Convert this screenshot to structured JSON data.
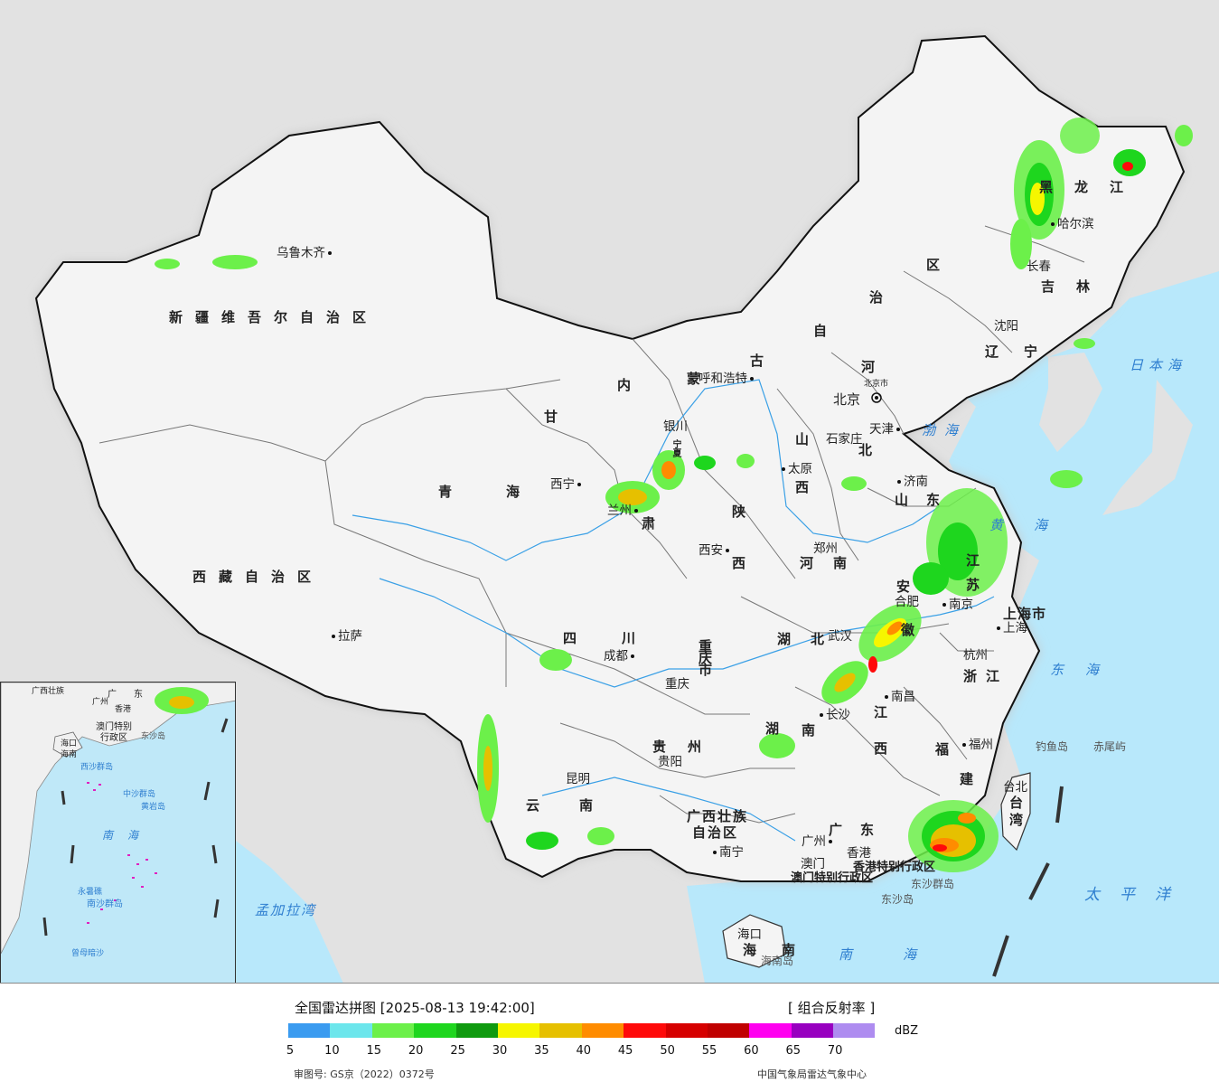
{
  "header": {
    "title": "全国雷达拼图 [2025-08-13 19:42:00]",
    "product": "[ 组合反射率 ]"
  },
  "legend": {
    "unit": "dBZ",
    "colors": [
      "#3a9bf0",
      "#6ce6ec",
      "#6cf04a",
      "#1ed61e",
      "#0f9a0f",
      "#f6f600",
      "#e6c000",
      "#ff8c00",
      "#ff0a0a",
      "#d60000",
      "#c00000",
      "#ff00f0",
      "#9800c0",
      "#ae8cf0"
    ],
    "ticks": [
      "5",
      "10",
      "15",
      "20",
      "25",
      "30",
      "35",
      "40",
      "45",
      "50",
      "55",
      "60",
      "65",
      "70"
    ]
  },
  "footer": {
    "approval": "审图号: GS京（2022）0372号",
    "agency": "中国气象局雷达气象中心"
  },
  "map": {
    "provinces": {
      "xinjiang": "新疆维吾尔自治区",
      "xizang": "西藏自治区",
      "qinghai": "青海",
      "gansu_gan": "甘",
      "gansu_su": "肃",
      "neimenggu": [
        "内",
        "蒙",
        "古",
        "自",
        "治",
        "区"
      ],
      "heilongjiang": "黑龙江",
      "jilin": "吉林",
      "liaoning": "辽宁",
      "hebei_he": "河",
      "hebei_bei": "北",
      "shanxi": "山西",
      "shaanxi_shan": "陕",
      "shaanxi_xi": "西",
      "henan": "河南",
      "shandong": "山东",
      "jiangsu": "江苏",
      "anhui_an": "安",
      "anhui_hui": "徽",
      "hubei": "湖北",
      "hunan_hu": "湖",
      "hunan_nan": "南",
      "jiangxi_jiang": "江",
      "jiangxi_xi": "西",
      "zhejiang": "浙江",
      "fujian_fu": "福",
      "fujian_jian": "建",
      "sichuan": "四川",
      "chongqing": "重庆市",
      "guizhou": "贵州",
      "yunnan": "云南",
      "guangxi_1": "广西壮族",
      "guangxi_2": "自治区",
      "guangdong": "广东",
      "hainan": "海南",
      "taiwan": "台湾",
      "shanghai": "上海市",
      "ningxia": "宁夏",
      "hk": "香港特别行政区",
      "macao": "澳门特别行政区"
    },
    "cities": {
      "urumqi": "乌鲁木齐",
      "lhasa": "拉萨",
      "xining": "西宁",
      "lanzhou": "兰州",
      "yinchuan": "银川",
      "huhehaote": "呼和浩特",
      "beijing": "北京",
      "tianjin": "天津",
      "shijiazhuang": "石家庄",
      "taiyuan": "太原",
      "xian": "西安",
      "zhengzhou": "郑州",
      "jinan": "济南",
      "nanjing": "南京",
      "hefei": "合肥",
      "shanghai": "上海",
      "hangzhou": "杭州",
      "wuhan": "武汉",
      "nanchang": "南昌",
      "changsha": "长沙",
      "fuzhou": "福州",
      "taibei": "台北",
      "chengdu": "成都",
      "chongqing": "重庆",
      "guiyang": "贵阳",
      "kunming": "昆明",
      "nanning": "南宁",
      "guangzhou": "广州",
      "hongkong": "香港",
      "macao": "澳门",
      "haikou": "海口",
      "harbin": "哈尔滨",
      "changchun": "长春",
      "shenyang": "沈阳"
    },
    "seas": {
      "bohai": "渤海",
      "huanghai": "黄海",
      "donghai": "东海",
      "nanhai": "南海",
      "riben": "日本海",
      "taiping": "太平洋",
      "mengjiala": "孟加拉湾"
    },
    "islands": {
      "diaoyu": "钓鱼岛",
      "chiwei": "赤尾屿",
      "dongsha_qundao": "东沙群岛",
      "dongsha_dao": "东沙岛",
      "hainan_dao": "海南岛",
      "beijing_shi": "北京市"
    },
    "inset": {
      "guangxi": "广西壮族",
      "guangdong_1": "广",
      "guangdong_2": "东",
      "guangzhou": "广州",
      "hk": "香港",
      "macao_1": "澳门特别",
      "macao_2": "行政区",
      "dongsha": "东沙岛",
      "haikou": "海口",
      "hainan": "海南",
      "xisha": "西沙群岛",
      "zhongsha": "中沙群岛",
      "huangyan": "黄岩岛",
      "nanhai": "南海",
      "nansha": "南沙群岛",
      "zengmu": "曾母暗沙",
      "yongshu": "永暑礁"
    }
  }
}
